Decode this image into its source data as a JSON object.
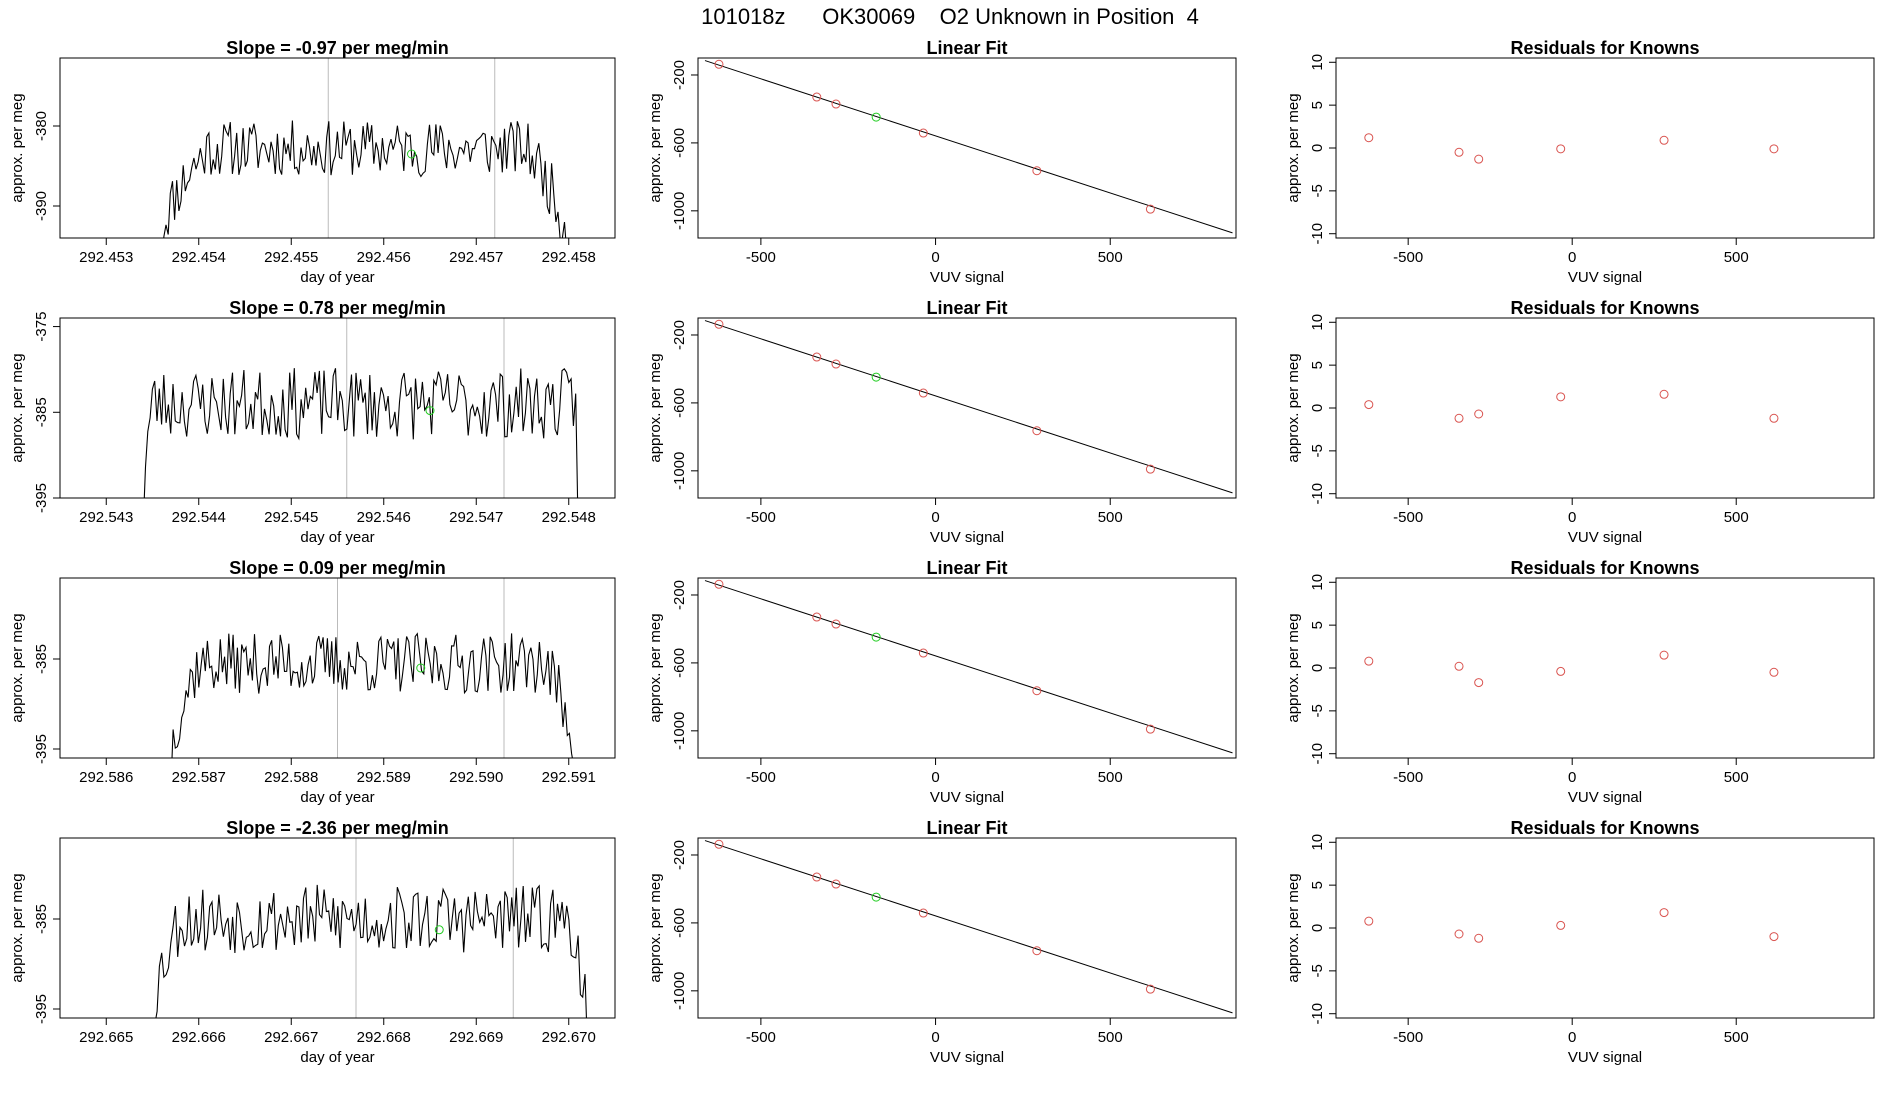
{
  "title": "101018z      OK30069    O2 Unknown in Position  4",
  "colors": {
    "known": "#d9534f",
    "unknown": "#22cc22",
    "line": "#000000",
    "vline": "#bbbbbb"
  },
  "chart_data": [
    {
      "type": "line",
      "row": 0,
      "kind": "series",
      "title": "Slope =  -0.97  per meg/min",
      "xlabel": "day of year",
      "ylabel": "approx. per meg",
      "xlim": [
        292.4525,
        292.4585
      ],
      "ylim": [
        -394,
        -371.5
      ],
      "x_ticks": [
        292.453,
        292.454,
        292.455,
        292.456,
        292.457,
        292.458
      ],
      "x_tick_labels": [
        "292.453",
        "292.454",
        "292.455",
        "292.456",
        "292.457",
        "292.458"
      ],
      "y_ticks": [
        -380,
        -390
      ],
      "y_tick_labels": [
        "-380",
        "-390"
      ],
      "trace_start": 292.4536,
      "trace_end": 292.458,
      "seed": 11,
      "plateau": [
        292.4541,
        292.4575
      ],
      "level": -382.8,
      "noise": 2.2,
      "bottom": -394,
      "vlines": [
        292.4554,
        292.4572
      ],
      "unknown_point": {
        "x": 292.4563,
        "y": -383.5
      }
    },
    {
      "type": "scatter",
      "row": 0,
      "kind": "fit",
      "title": "Linear Fit",
      "xlabel": "VUV signal",
      "ylabel": "approx. per meg",
      "xlim": [
        -680,
        860
      ],
      "ylim": [
        -1160,
        -100
      ],
      "x_ticks": [
        -500,
        0,
        500
      ],
      "x_tick_labels": [
        "-500",
        "0",
        "500"
      ],
      "y_ticks": [
        -200,
        -600,
        -1000
      ],
      "y_tick_labels": [
        "-200",
        "-600",
        "-1000"
      ],
      "line": {
        "x1": -660,
        "y1": -115,
        "x2": 850,
        "y2": -1130
      },
      "known_points": [
        {
          "x": -620,
          "y": -137
        },
        {
          "x": -340,
          "y": -330
        },
        {
          "x": -285,
          "y": -371
        },
        {
          "x": -35,
          "y": -542
        },
        {
          "x": 290,
          "y": -764
        },
        {
          "x": 615,
          "y": -990
        }
      ],
      "unknown_point": {
        "x": -170,
        "y": -448
      }
    },
    {
      "type": "scatter",
      "row": 0,
      "kind": "resid",
      "title": "Residuals for Knowns",
      "xlabel": "VUV signal",
      "ylabel": "approx. per meg",
      "xlim": [
        -720,
        920
      ],
      "ylim": [
        -10.5,
        10.5
      ],
      "x_ticks": [
        -500,
        0,
        500
      ],
      "x_tick_labels": [
        "-500",
        "0",
        "500"
      ],
      "y_ticks": [
        10,
        5,
        0,
        -5,
        -10
      ],
      "y_tick_labels": [
        "10",
        "5",
        "0",
        "-5",
        "-10"
      ],
      "points": [
        {
          "x": -620,
          "y": 1.2
        },
        {
          "x": -345,
          "y": -0.5
        },
        {
          "x": -285,
          "y": -1.3
        },
        {
          "x": -35,
          "y": -0.1
        },
        {
          "x": 280,
          "y": 0.9
        },
        {
          "x": 615,
          "y": -0.1
        }
      ]
    },
    {
      "type": "line",
      "row": 1,
      "kind": "series",
      "title": "Slope =  0.78  per meg/min",
      "xlabel": "day of year",
      "ylabel": "approx. per meg",
      "xlim": [
        292.5425,
        292.5485
      ],
      "ylim": [
        -395,
        -374
      ],
      "x_ticks": [
        292.543,
        292.544,
        292.545,
        292.546,
        292.547,
        292.548
      ],
      "x_tick_labels": [
        "292.543",
        "292.544",
        "292.545",
        "292.546",
        "292.547",
        "292.548"
      ],
      "y_ticks": [
        -375,
        -385,
        -395
      ],
      "y_tick_labels": [
        "-375",
        "-385",
        "-395"
      ],
      "trace_start": 292.5434,
      "trace_end": 292.5481,
      "seed": 23,
      "plateau": [
        292.5435,
        292.5481
      ],
      "level": -384.0,
      "noise": 2.6,
      "bottom": -395,
      "vlines": [
        292.5456,
        292.5473
      ],
      "unknown_point": {
        "x": 292.5465,
        "y": -384.8
      }
    },
    {
      "type": "scatter",
      "row": 1,
      "kind": "fit",
      "title": "Linear Fit",
      "xlabel": "VUV signal",
      "ylabel": "approx. per meg",
      "xlim": [
        -680,
        860
      ],
      "ylim": [
        -1160,
        -100
      ],
      "x_ticks": [
        -500,
        0,
        500
      ],
      "x_tick_labels": [
        "-500",
        "0",
        "500"
      ],
      "y_ticks": [
        -200,
        -600,
        -1000
      ],
      "y_tick_labels": [
        "-200",
        "-600",
        "-1000"
      ],
      "line": {
        "x1": -660,
        "y1": -115,
        "x2": 850,
        "y2": -1130
      },
      "known_points": [
        {
          "x": -620,
          "y": -137
        },
        {
          "x": -340,
          "y": -330
        },
        {
          "x": -285,
          "y": -371
        },
        {
          "x": -35,
          "y": -542
        },
        {
          "x": 290,
          "y": -764
        },
        {
          "x": 615,
          "y": -990
        }
      ],
      "unknown_point": {
        "x": -170,
        "y": -448
      }
    },
    {
      "type": "scatter",
      "row": 1,
      "kind": "resid",
      "title": "Residuals for Knowns",
      "xlabel": "VUV signal",
      "ylabel": "approx. per meg",
      "xlim": [
        -720,
        920
      ],
      "ylim": [
        -10.5,
        10.5
      ],
      "x_ticks": [
        -500,
        0,
        500
      ],
      "x_tick_labels": [
        "-500",
        "0",
        "500"
      ],
      "y_ticks": [
        10,
        5,
        0,
        -5,
        -10
      ],
      "y_tick_labels": [
        "10",
        "5",
        "0",
        "-5",
        "-10"
      ],
      "points": [
        {
          "x": -620,
          "y": 0.4
        },
        {
          "x": -345,
          "y": -1.2
        },
        {
          "x": -285,
          "y": -0.7
        },
        {
          "x": -35,
          "y": 1.3
        },
        {
          "x": 280,
          "y": 1.6
        },
        {
          "x": 615,
          "y": -1.2
        }
      ]
    },
    {
      "type": "line",
      "row": 2,
      "kind": "series",
      "title": "Slope =  0.09  per meg/min",
      "xlabel": "day of year",
      "ylabel": "approx. per meg",
      "xlim": [
        292.5855,
        292.5915
      ],
      "ylim": [
        -396,
        -376
      ],
      "x_ticks": [
        292.586,
        292.587,
        292.588,
        292.589,
        292.59,
        292.591
      ],
      "x_tick_labels": [
        "292.586",
        "292.587",
        "292.588",
        "292.589",
        "292.590",
        "292.591"
      ],
      "y_ticks": [
        -385,
        -395
      ],
      "y_tick_labels": [
        "-385",
        "-395"
      ],
      "trace_start": 292.5867,
      "trace_end": 292.5911,
      "seed": 37,
      "plateau": [
        292.587,
        292.5907
      ],
      "level": -385.5,
      "noise": 2.1,
      "bottom": -396,
      "vlines": [
        292.5885,
        292.5903
      ],
      "unknown_point": {
        "x": 292.5894,
        "y": -386.0
      }
    },
    {
      "type": "scatter",
      "row": 2,
      "kind": "fit",
      "title": "Linear Fit",
      "xlabel": "VUV signal",
      "ylabel": "approx. per meg",
      "xlim": [
        -680,
        860
      ],
      "ylim": [
        -1160,
        -100
      ],
      "x_ticks": [
        -500,
        0,
        500
      ],
      "x_tick_labels": [
        "-500",
        "0",
        "500"
      ],
      "y_ticks": [
        -200,
        -600,
        -1000
      ],
      "y_tick_labels": [
        "-200",
        "-600",
        "-1000"
      ],
      "line": {
        "x1": -660,
        "y1": -115,
        "x2": 850,
        "y2": -1130
      },
      "known_points": [
        {
          "x": -620,
          "y": -137
        },
        {
          "x": -340,
          "y": -330
        },
        {
          "x": -285,
          "y": -371
        },
        {
          "x": -35,
          "y": -542
        },
        {
          "x": 290,
          "y": -764
        },
        {
          "x": 615,
          "y": -990
        }
      ],
      "unknown_point": {
        "x": -170,
        "y": -448
      }
    },
    {
      "type": "scatter",
      "row": 2,
      "kind": "resid",
      "title": "Residuals for Knowns",
      "xlabel": "VUV signal",
      "ylabel": "approx. per meg",
      "xlim": [
        -720,
        920
      ],
      "ylim": [
        -10.5,
        10.5
      ],
      "x_ticks": [
        -500,
        0,
        500
      ],
      "x_tick_labels": [
        "-500",
        "0",
        "500"
      ],
      "y_ticks": [
        10,
        5,
        0,
        -5,
        -10
      ],
      "y_tick_labels": [
        "10",
        "5",
        "0",
        "-5",
        "-10"
      ],
      "points": [
        {
          "x": -620,
          "y": 0.8
        },
        {
          "x": -345,
          "y": 0.2
        },
        {
          "x": -285,
          "y": -1.7
        },
        {
          "x": -35,
          "y": -0.4
        },
        {
          "x": 280,
          "y": 1.5
        },
        {
          "x": 615,
          "y": -0.5
        }
      ]
    },
    {
      "type": "line",
      "row": 3,
      "kind": "series",
      "title": "Slope =  -2.36  per meg/min",
      "xlabel": "day of year",
      "ylabel": "approx. per meg",
      "xlim": [
        292.6645,
        292.6705
      ],
      "ylim": [
        -396,
        -376
      ],
      "x_ticks": [
        292.665,
        292.666,
        292.667,
        292.668,
        292.669,
        292.67
      ],
      "x_tick_labels": [
        "292.665",
        "292.666",
        "292.667",
        "292.668",
        "292.669",
        "292.670"
      ],
      "y_ticks": [
        -385,
        -395
      ],
      "y_tick_labels": [
        "-385",
        "-395"
      ],
      "trace_start": 292.6655,
      "trace_end": 292.6702,
      "seed": 53,
      "plateau": [
        292.6658,
        292.67
      ],
      "level": -385.0,
      "noise": 2.4,
      "bottom": -396,
      "vlines": [
        292.6677,
        292.6694
      ],
      "unknown_point": {
        "x": 292.6686,
        "y": -386.2
      }
    },
    {
      "type": "scatter",
      "row": 3,
      "kind": "fit",
      "title": "Linear Fit",
      "xlabel": "VUV signal",
      "ylabel": "approx. per meg",
      "xlim": [
        -680,
        860
      ],
      "ylim": [
        -1160,
        -100
      ],
      "x_ticks": [
        -500,
        0,
        500
      ],
      "x_tick_labels": [
        "-500",
        "0",
        "500"
      ],
      "y_ticks": [
        -200,
        -600,
        -1000
      ],
      "y_tick_labels": [
        "-200",
        "-600",
        "-1000"
      ],
      "line": {
        "x1": -660,
        "y1": -115,
        "x2": 850,
        "y2": -1130
      },
      "known_points": [
        {
          "x": -620,
          "y": -137
        },
        {
          "x": -340,
          "y": -330
        },
        {
          "x": -285,
          "y": -371
        },
        {
          "x": -35,
          "y": -542
        },
        {
          "x": 290,
          "y": -764
        },
        {
          "x": 615,
          "y": -990
        }
      ],
      "unknown_point": {
        "x": -170,
        "y": -448
      }
    },
    {
      "type": "scatter",
      "row": 3,
      "kind": "resid",
      "title": "Residuals for Knowns",
      "xlabel": "VUV signal",
      "ylabel": "approx. per meg",
      "xlim": [
        -720,
        920
      ],
      "ylim": [
        -10.5,
        10.5
      ],
      "x_ticks": [
        -500,
        0,
        500
      ],
      "x_tick_labels": [
        "-500",
        "0",
        "500"
      ],
      "y_ticks": [
        10,
        5,
        0,
        -5,
        -10
      ],
      "y_tick_labels": [
        "10",
        "5",
        "0",
        "-5",
        "-10"
      ],
      "points": [
        {
          "x": -620,
          "y": 0.8
        },
        {
          "x": -345,
          "y": -0.7
        },
        {
          "x": -285,
          "y": -1.2
        },
        {
          "x": -35,
          "y": 0.3
        },
        {
          "x": 280,
          "y": 1.8
        },
        {
          "x": 615,
          "y": -1.0
        }
      ]
    }
  ]
}
